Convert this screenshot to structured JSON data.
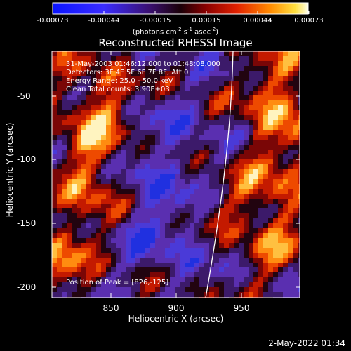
{
  "colorbar": {
    "ticks": [
      "-0.00073",
      "-0.00044",
      "-0.00015",
      "0.00015",
      "0.00044",
      "0.00073"
    ],
    "units_text": "(photons cm",
    "units_exp1": "-2",
    "units_mid1": " s",
    "units_exp2": "-1",
    "units_mid2": " asec",
    "units_exp3": "-2",
    "units_end": ")"
  },
  "title": "Reconstructed RHESSI Image",
  "info": {
    "line1": "31-May-2003 01:46:12.000 to 01:48:08.000",
    "line2": "Detectors: 3F 4F 5F 6F 7F 8F, Att 0",
    "line3": "Energy Range: 25.0 - 50.0 keV",
    "line4": "Clean     Total counts: 3.90E+03",
    "peak": "Position of Peak = [826,-125]"
  },
  "axes": {
    "xlabel": "Heliocentric X (arcsec)",
    "ylabel": "Heliocentric Y (arcsec)",
    "xticks": [
      "850",
      "900",
      "950"
    ],
    "yticks": [
      "-50",
      "-100",
      "-150",
      "-200"
    ],
    "xlim": [
      806,
      995
    ],
    "ylim": [
      -211,
      -17
    ]
  },
  "footer": "2-May-2022 01:34"
}
